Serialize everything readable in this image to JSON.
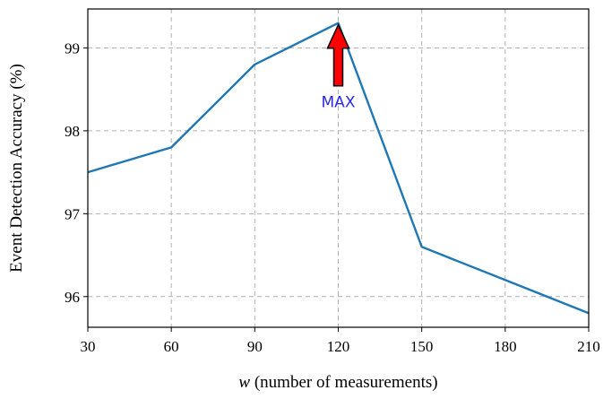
{
  "chart_data": {
    "type": "line",
    "xlabel_var": "w",
    "xlabel_rest": " (number of measurements)",
    "ylabel": "Event Detection Accuracy (%)",
    "x": [
      30,
      60,
      90,
      120,
      150,
      180,
      210
    ],
    "series": [
      {
        "values": [
          97.5,
          97.8,
          98.8,
          99.3,
          96.6,
          96.2,
          95.8
        ],
        "color": "#1f77b4"
      }
    ],
    "xticks": [
      30,
      60,
      90,
      120,
      150,
      180,
      210
    ],
    "yticks": [
      96,
      97,
      98,
      99
    ],
    "xlim": [
      30,
      210
    ],
    "ylim": [
      95.63,
      99.47
    ],
    "grid": true,
    "annotation": {
      "text": "MAX",
      "x": 120,
      "y": 99.3,
      "arrow_color": "#ff0000",
      "text_color": "#2a2ae6"
    }
  }
}
